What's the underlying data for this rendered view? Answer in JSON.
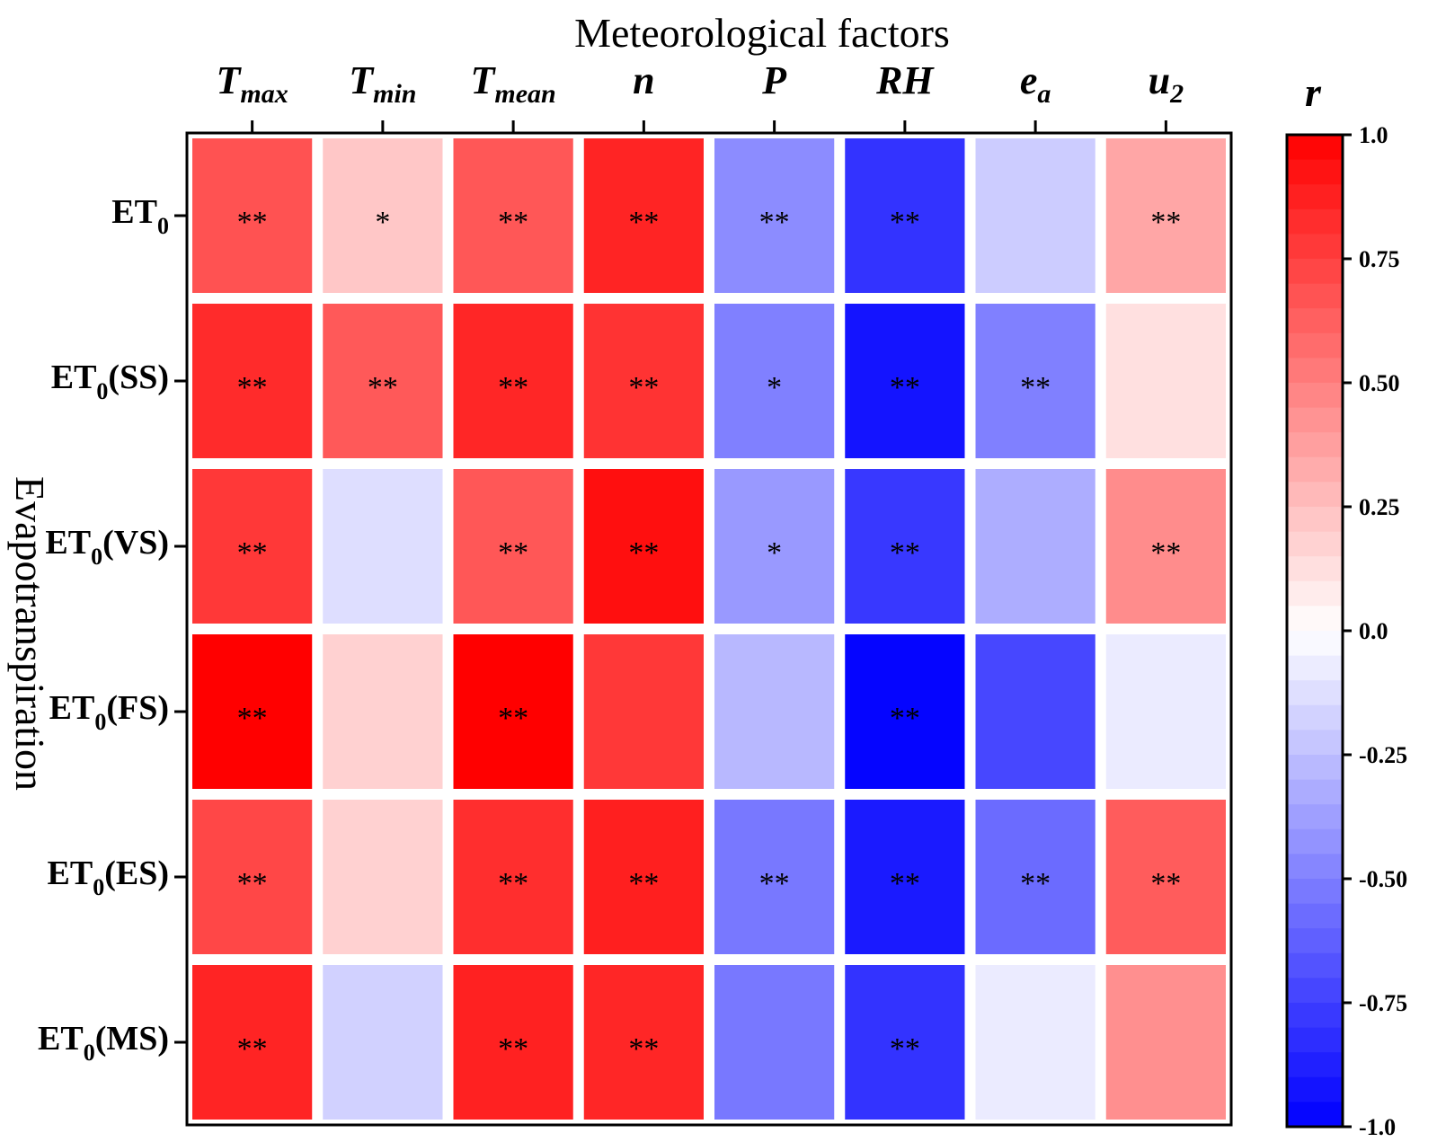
{
  "chart_data": {
    "type": "heatmap",
    "title": "Meteorological factors",
    "ylabel": "Evapotranspiration",
    "columns": [
      {
        "main": "T",
        "sub": "max"
      },
      {
        "main": "T",
        "sub": "min"
      },
      {
        "main": "T",
        "sub": "mean"
      },
      {
        "main": "n",
        "sub": ""
      },
      {
        "main": "P",
        "sub": ""
      },
      {
        "main": "RH",
        "sub": ""
      },
      {
        "main": "e",
        "sub": "a"
      },
      {
        "main": "u",
        "sub": "2"
      }
    ],
    "rows": [
      {
        "main": "ET",
        "sub": "0",
        "suffix": ""
      },
      {
        "main": "ET",
        "sub": "0",
        "suffix": "(SS)"
      },
      {
        "main": "ET",
        "sub": "0",
        "suffix": "(VS)"
      },
      {
        "main": "ET",
        "sub": "0",
        "suffix": "(FS)"
      },
      {
        "main": "ET",
        "sub": "0",
        "suffix": "(ES)"
      },
      {
        "main": "ET",
        "sub": "0",
        "suffix": "(MS)"
      }
    ],
    "values": [
      [
        0.68,
        0.22,
        0.66,
        0.86,
        -0.45,
        -0.8,
        -0.2,
        0.35
      ],
      [
        0.83,
        0.65,
        0.85,
        0.8,
        -0.5,
        -0.92,
        -0.5,
        0.12
      ],
      [
        0.78,
        -0.13,
        0.66,
        0.94,
        -0.4,
        -0.78,
        -0.32,
        0.45
      ],
      [
        1.0,
        0.18,
        1.0,
        0.78,
        -0.28,
        -0.98,
        -0.72,
        -0.08
      ],
      [
        0.72,
        0.18,
        0.82,
        0.88,
        -0.53,
        -0.9,
        -0.58,
        0.64
      ],
      [
        0.86,
        -0.18,
        0.87,
        0.85,
        -0.53,
        -0.8,
        -0.08,
        0.44
      ]
    ],
    "significance": [
      [
        "**",
        "*",
        "**",
        "**",
        "**",
        "**",
        "",
        "**"
      ],
      [
        "**",
        "**",
        "**",
        "**",
        "*",
        "**",
        "**",
        ""
      ],
      [
        "**",
        "",
        "**",
        "**",
        "*",
        "**",
        "",
        "**"
      ],
      [
        "**",
        "",
        "**",
        "",
        "",
        "**",
        "",
        ""
      ],
      [
        "**",
        "",
        "**",
        "**",
        "**",
        "**",
        "**",
        "**"
      ],
      [
        "**",
        "",
        "**",
        "**",
        "",
        "**",
        "",
        ""
      ]
    ],
    "colorbar": {
      "title": "r",
      "range": [
        -1.0,
        1.0
      ],
      "ticks": [
        "1.0",
        "0.75",
        "0.50",
        "0.25",
        "0.0",
        "-0.25",
        "-0.50",
        "-0.75",
        "-1.0"
      ],
      "tick_values": [
        1.0,
        0.75,
        0.5,
        0.25,
        0.0,
        -0.25,
        -0.5,
        -0.75,
        -1.0
      ],
      "steps": 40,
      "high_color": "#ff0000",
      "mid_color": "#ffffff",
      "low_color": "#0000ff"
    }
  }
}
